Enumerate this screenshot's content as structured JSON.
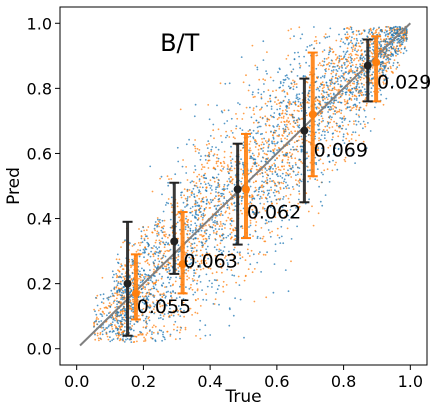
{
  "chart_data": {
    "type": "scatter",
    "title": "B/T",
    "xlabel": "True",
    "ylabel": "Pred",
    "xlim": [
      -0.05,
      1.05
    ],
    "ylim": [
      -0.05,
      1.05
    ],
    "x_ticks": [
      "0.0",
      "0.2",
      "0.4",
      "0.6",
      "0.8",
      "1.0"
    ],
    "y_ticks": [
      "0.0",
      "0.2",
      "0.4",
      "0.6",
      "0.8",
      "1.0"
    ],
    "grid": false,
    "legend": "none",
    "reference_line": {
      "from": [
        0.01,
        0.01
      ],
      "to": [
        1.0,
        1.0
      ],
      "color": "#808080"
    },
    "series": [
      {
        "color": "#1f77b4",
        "points": "dense cloud of small points along the diagonal",
        "bins": [
          {
            "x": 0.16,
            "y": 0.2,
            "low": 0.04,
            "high": 0.39
          },
          {
            "x": 0.3,
            "y": 0.33,
            "low": 0.23,
            "high": 0.51
          },
          {
            "x": 0.49,
            "y": 0.49,
            "low": 0.32,
            "high": 0.63
          },
          {
            "x": 0.69,
            "y": 0.67,
            "low": 0.45,
            "high": 0.83
          },
          {
            "x": 0.88,
            "y": 0.87,
            "low": 0.76,
            "high": 0.95
          }
        ]
      },
      {
        "color": "#ff7f0e",
        "points": "dense cloud of small points along the diagonal",
        "bins": [
          {
            "x": 0.17,
            "y": 0.17,
            "low": 0.09,
            "high": 0.29
          },
          {
            "x": 0.31,
            "y": 0.26,
            "low": 0.17,
            "high": 0.42
          },
          {
            "x": 0.5,
            "y": 0.49,
            "low": 0.34,
            "high": 0.66
          },
          {
            "x": 0.7,
            "y": 0.72,
            "low": 0.53,
            "high": 0.91
          },
          {
            "x": 0.89,
            "y": 0.88,
            "low": 0.76,
            "high": 0.96
          }
        ]
      }
    ],
    "annotations": [
      {
        "text": "0.055",
        "x": 0.18,
        "y": 0.11
      },
      {
        "text": "0.063",
        "x": 0.32,
        "y": 0.25
      },
      {
        "text": "0.062",
        "x": 0.51,
        "y": 0.4
      },
      {
        "text": "0.069",
        "x": 0.71,
        "y": 0.59
      },
      {
        "text": "0.029",
        "x": 0.9,
        "y": 0.8
      }
    ],
    "colors": {
      "axes": "#000000",
      "bin_marker": "#222222"
    }
  }
}
